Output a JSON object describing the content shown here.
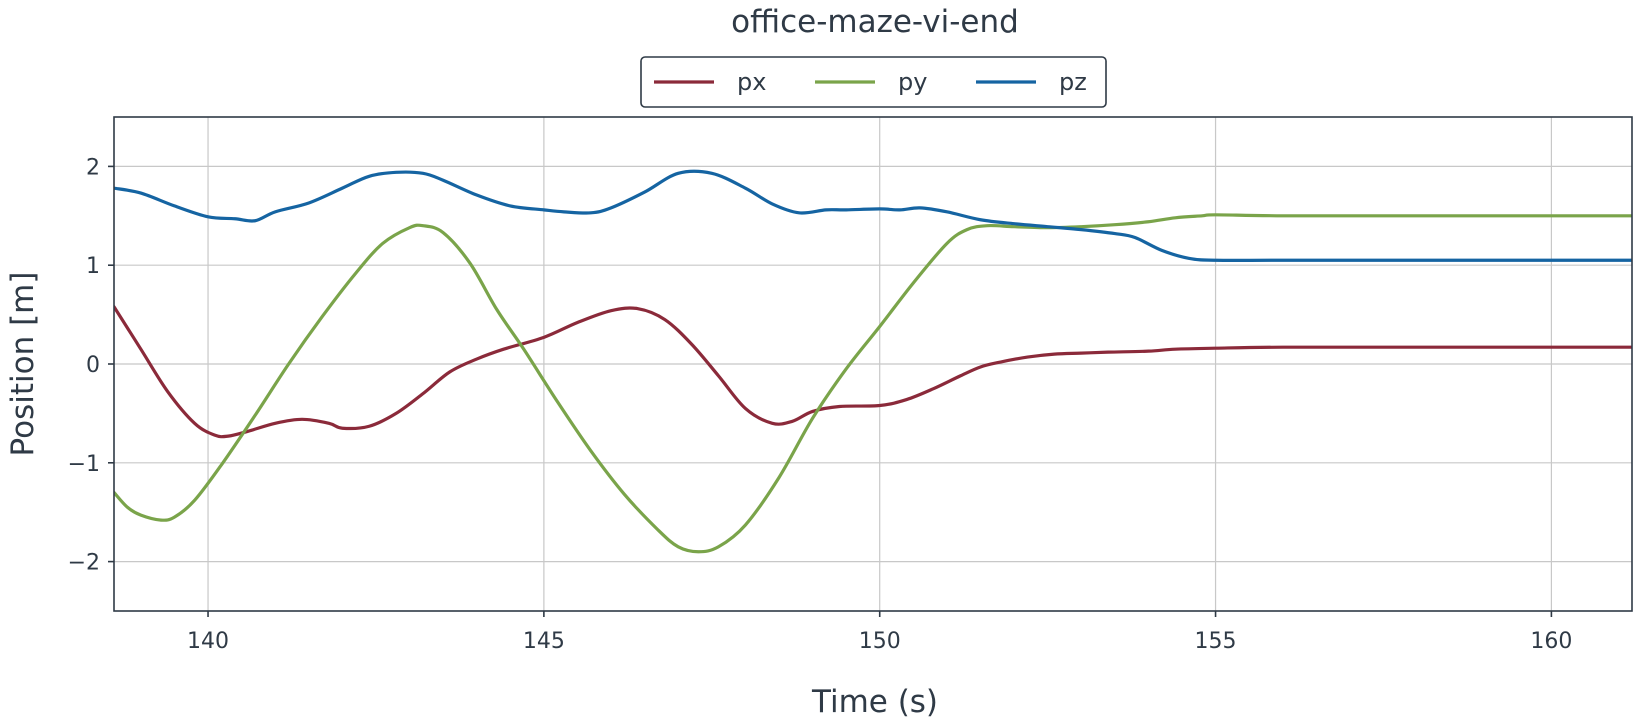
{
  "chart_data": {
    "type": "line",
    "title": "office-maze-vi-end",
    "xlabel": "Time (s)",
    "ylabel": "Position [m]",
    "xlim": [
      138.6,
      161.2
    ],
    "ylim": [
      -2.5,
      2.5
    ],
    "xticks": [
      140,
      145,
      150,
      155,
      160
    ],
    "yticks": [
      -2,
      -1,
      0,
      1,
      2
    ],
    "xtick_labels": [
      "140",
      "145",
      "150",
      "155",
      "160"
    ],
    "ytick_labels": [
      "−2",
      "−1",
      "0",
      "1",
      "2"
    ],
    "grid": true,
    "legend_position": "top-center",
    "series": [
      {
        "name": "px",
        "color": "#8b2a3a",
        "x": [
          138.6,
          139.0,
          139.4,
          139.8,
          140.1,
          140.3,
          140.6,
          141.0,
          141.4,
          141.8,
          142.0,
          142.4,
          142.8,
          143.2,
          143.6,
          144.0,
          144.4,
          145.0,
          145.5,
          146.0,
          146.4,
          146.8,
          147.2,
          147.6,
          148.0,
          148.4,
          148.7,
          149.0,
          149.4,
          150.0,
          150.4,
          150.8,
          151.2,
          151.5,
          151.8,
          152.2,
          152.6,
          153.0,
          153.4,
          154.0,
          154.4,
          155.0,
          156.0,
          158.0,
          161.2
        ],
        "y": [
          0.58,
          0.15,
          -0.28,
          -0.6,
          -0.72,
          -0.73,
          -0.68,
          -0.6,
          -0.56,
          -0.6,
          -0.65,
          -0.63,
          -0.5,
          -0.3,
          -0.08,
          0.05,
          0.15,
          0.27,
          0.42,
          0.54,
          0.56,
          0.45,
          0.2,
          -0.12,
          -0.45,
          -0.6,
          -0.58,
          -0.48,
          -0.43,
          -0.42,
          -0.36,
          -0.25,
          -0.12,
          -0.03,
          0.02,
          0.07,
          0.1,
          0.11,
          0.12,
          0.13,
          0.15,
          0.16,
          0.17,
          0.17,
          0.17
        ]
      },
      {
        "name": "py",
        "color": "#7aa44a",
        "x": [
          138.6,
          138.8,
          139.0,
          139.3,
          139.5,
          139.8,
          140.2,
          140.7,
          141.2,
          141.7,
          142.2,
          142.6,
          143.0,
          143.2,
          143.5,
          143.9,
          144.3,
          144.7,
          145.2,
          145.7,
          146.2,
          146.7,
          147.0,
          147.3,
          147.6,
          148.0,
          148.5,
          149.0,
          149.5,
          150.0,
          150.5,
          151.0,
          151.3,
          151.6,
          152.0,
          152.5,
          153.0,
          153.5,
          154.0,
          154.4,
          154.8,
          155.0,
          156.0,
          158.0,
          161.2
        ],
        "y": [
          -1.3,
          -1.45,
          -1.53,
          -1.58,
          -1.55,
          -1.38,
          -1.02,
          -0.52,
          0.0,
          0.48,
          0.92,
          1.22,
          1.38,
          1.4,
          1.33,
          1.02,
          0.55,
          0.15,
          -0.38,
          -0.88,
          -1.32,
          -1.68,
          -1.85,
          -1.9,
          -1.85,
          -1.63,
          -1.15,
          -0.55,
          -0.05,
          0.38,
          0.82,
          1.22,
          1.36,
          1.4,
          1.39,
          1.38,
          1.39,
          1.41,
          1.44,
          1.48,
          1.5,
          1.51,
          1.5,
          1.5,
          1.5
        ]
      },
      {
        "name": "pz",
        "color": "#1564a2",
        "x": [
          138.6,
          139.0,
          139.5,
          140.0,
          140.4,
          140.7,
          141.0,
          141.5,
          142.0,
          142.4,
          142.8,
          143.2,
          143.5,
          144.0,
          144.5,
          145.0,
          145.3,
          145.7,
          146.0,
          146.5,
          147.0,
          147.5,
          148.0,
          148.4,
          148.8,
          149.2,
          149.5,
          150.0,
          150.3,
          150.6,
          151.0,
          151.5,
          152.0,
          152.5,
          153.0,
          153.5,
          153.8,
          154.2,
          154.6,
          155.0,
          156.0,
          158.0,
          161.2
        ],
        "y": [
          1.78,
          1.73,
          1.6,
          1.49,
          1.47,
          1.45,
          1.54,
          1.63,
          1.78,
          1.9,
          1.94,
          1.93,
          1.86,
          1.71,
          1.6,
          1.56,
          1.54,
          1.53,
          1.58,
          1.74,
          1.93,
          1.93,
          1.78,
          1.62,
          1.53,
          1.56,
          1.56,
          1.57,
          1.56,
          1.58,
          1.54,
          1.46,
          1.42,
          1.39,
          1.36,
          1.32,
          1.28,
          1.15,
          1.07,
          1.05,
          1.05,
          1.05,
          1.05
        ]
      }
    ]
  }
}
